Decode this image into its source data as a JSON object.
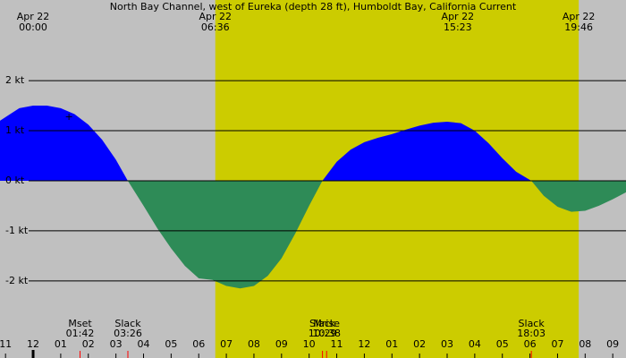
{
  "chart_data": {
    "type": "area",
    "title": "North Bay Channel, west of Eureka (depth 28 ft), Humboldt Bay, California Current",
    "x": [
      -1.2,
      -0.5,
      0,
      0.5,
      1,
      1.5,
      2,
      2.5,
      3,
      3.43,
      4,
      4.5,
      5,
      5.5,
      6,
      6.5,
      7,
      7.5,
      8,
      8.5,
      9,
      9.5,
      10,
      10.48,
      11,
      11.5,
      12,
      12.5,
      13,
      13.5,
      14,
      14.5,
      15,
      15.5,
      16,
      16.5,
      17,
      17.5,
      18.05,
      18.5,
      19,
      19.5,
      20,
      20.5,
      21,
      21.48
    ],
    "values": [
      1.2,
      1.45,
      1.5,
      1.5,
      1.45,
      1.33,
      1.12,
      0.82,
      0.42,
      0,
      -0.5,
      -0.95,
      -1.35,
      -1.7,
      -1.95,
      -1.98,
      -2.1,
      -2.15,
      -2.1,
      -1.9,
      -1.55,
      -1.05,
      -0.5,
      0,
      0.38,
      0.62,
      0.77,
      0.86,
      0.93,
      1.02,
      1.1,
      1.16,
      1.18,
      1.15,
      1.0,
      0.75,
      0.45,
      0.18,
      0,
      -0.3,
      -0.52,
      -0.62,
      -0.6,
      -0.5,
      -0.37,
      -0.23
    ],
    "flood_color": "#0000ff",
    "ebb_color": "#2e8b57",
    "xlim": [
      -1.2,
      21.48
    ],
    "ylim": [
      -3.54,
      3.61
    ],
    "yticks": [
      {
        "value": 2,
        "label": "2 kt"
      },
      {
        "value": 1,
        "label": "1 kt"
      },
      {
        "value": 0,
        "label": "0 kt"
      },
      {
        "value": -1,
        "label": "-1 kt"
      },
      {
        "value": -2,
        "label": "-2 kt"
      }
    ],
    "xticks": [
      {
        "value": -1,
        "label": "11"
      },
      {
        "value": 0,
        "label": "12"
      },
      {
        "value": 1,
        "label": "01"
      },
      {
        "value": 2,
        "label": "02"
      },
      {
        "value": 3,
        "label": "03"
      },
      {
        "value": 4,
        "label": "04"
      },
      {
        "value": 5,
        "label": "05"
      },
      {
        "value": 6,
        "label": "06"
      },
      {
        "value": 7,
        "label": "07"
      },
      {
        "value": 8,
        "label": "08"
      },
      {
        "value": 9,
        "label": "09"
      },
      {
        "value": 10,
        "label": "10"
      },
      {
        "value": 11,
        "label": "11"
      },
      {
        "value": 12,
        "label": "12"
      },
      {
        "value": 13,
        "label": "01"
      },
      {
        "value": 14,
        "label": "02"
      },
      {
        "value": 15,
        "label": "03"
      },
      {
        "value": 16,
        "label": "04"
      },
      {
        "value": 17,
        "label": "05"
      },
      {
        "value": 18,
        "label": "06"
      },
      {
        "value": 19,
        "label": "07"
      },
      {
        "value": 20,
        "label": "08"
      },
      {
        "value": 21,
        "label": "09"
      }
    ],
    "grid": true,
    "top_labels": [
      {
        "date": "Apr 22",
        "time": "00:00",
        "hour": 0
      },
      {
        "date": "Apr 22",
        "time": "06:36",
        "hour": 6.6
      },
      {
        "date": "Apr 22",
        "time": "15:23",
        "hour": 15.383
      },
      {
        "date": "Apr 22",
        "time": "19:46",
        "hour": 19.767
      }
    ],
    "events": [
      {
        "name": "Mset",
        "time": "01:42",
        "hour": 1.7
      },
      {
        "name": "Slack",
        "time": "03:26",
        "hour": 3.433
      },
      {
        "name": "Slack",
        "time": "10:29",
        "hour": 10.483
      },
      {
        "name": "Mrise",
        "time": "10:38",
        "hour": 10.633
      },
      {
        "name": "Slack",
        "time": "18:03",
        "hour": 18.05
      }
    ],
    "transit_marker": {
      "label": "+",
      "hour": 1.3,
      "value": 1.27
    }
  }
}
